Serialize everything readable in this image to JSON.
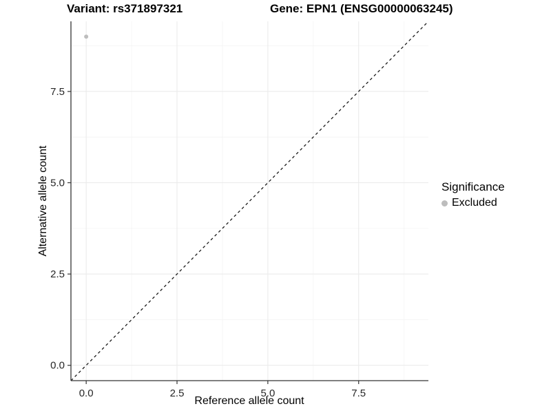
{
  "page": {
    "background": "#ffffff"
  },
  "chart_data": {
    "type": "scatter",
    "titles": {
      "left": "Variant: rs371897321",
      "right": "Gene: EPN1 (ENSG00000063245)"
    },
    "xlabel": "Reference allele count",
    "ylabel": "Alternative allele count",
    "xlim": [
      -0.42,
      9.42
    ],
    "ylim": [
      -0.42,
      9.42
    ],
    "x_ticks": [
      0,
      2.5,
      5,
      7.5
    ],
    "x_tick_labels": [
      "0.0",
      "2.5",
      "5.0",
      "7.5"
    ],
    "y_ticks": [
      0,
      2.5,
      5,
      7.5
    ],
    "y_tick_labels": [
      "0.0",
      "2.5",
      "5.0",
      "7.5"
    ],
    "x_minor_ticks": [
      1.25,
      3.75,
      6.25,
      8.75
    ],
    "y_minor_ticks": [
      1.25,
      3.75,
      6.25,
      8.75
    ],
    "grid": {
      "major": true,
      "minor": true
    },
    "series": [
      {
        "name": "Excluded",
        "color": "#bdbdbd",
        "points": [
          {
            "x": 0,
            "y": 9
          }
        ],
        "point_radius": 3
      }
    ],
    "reference_line": {
      "slope": 1,
      "intercept": 0,
      "style": "dashed",
      "color": "#1a1a1a"
    },
    "legend": {
      "title": "Significance",
      "position": "right",
      "entries": [
        {
          "label": "Excluded",
          "color": "#bdbdbd"
        }
      ]
    },
    "colors": {
      "grid_major": "#ebebeb",
      "grid_minor": "#f4f4f4",
      "axis_line": "#333333",
      "tick_mark": "#333333",
      "tick_text": "#262626"
    }
  }
}
